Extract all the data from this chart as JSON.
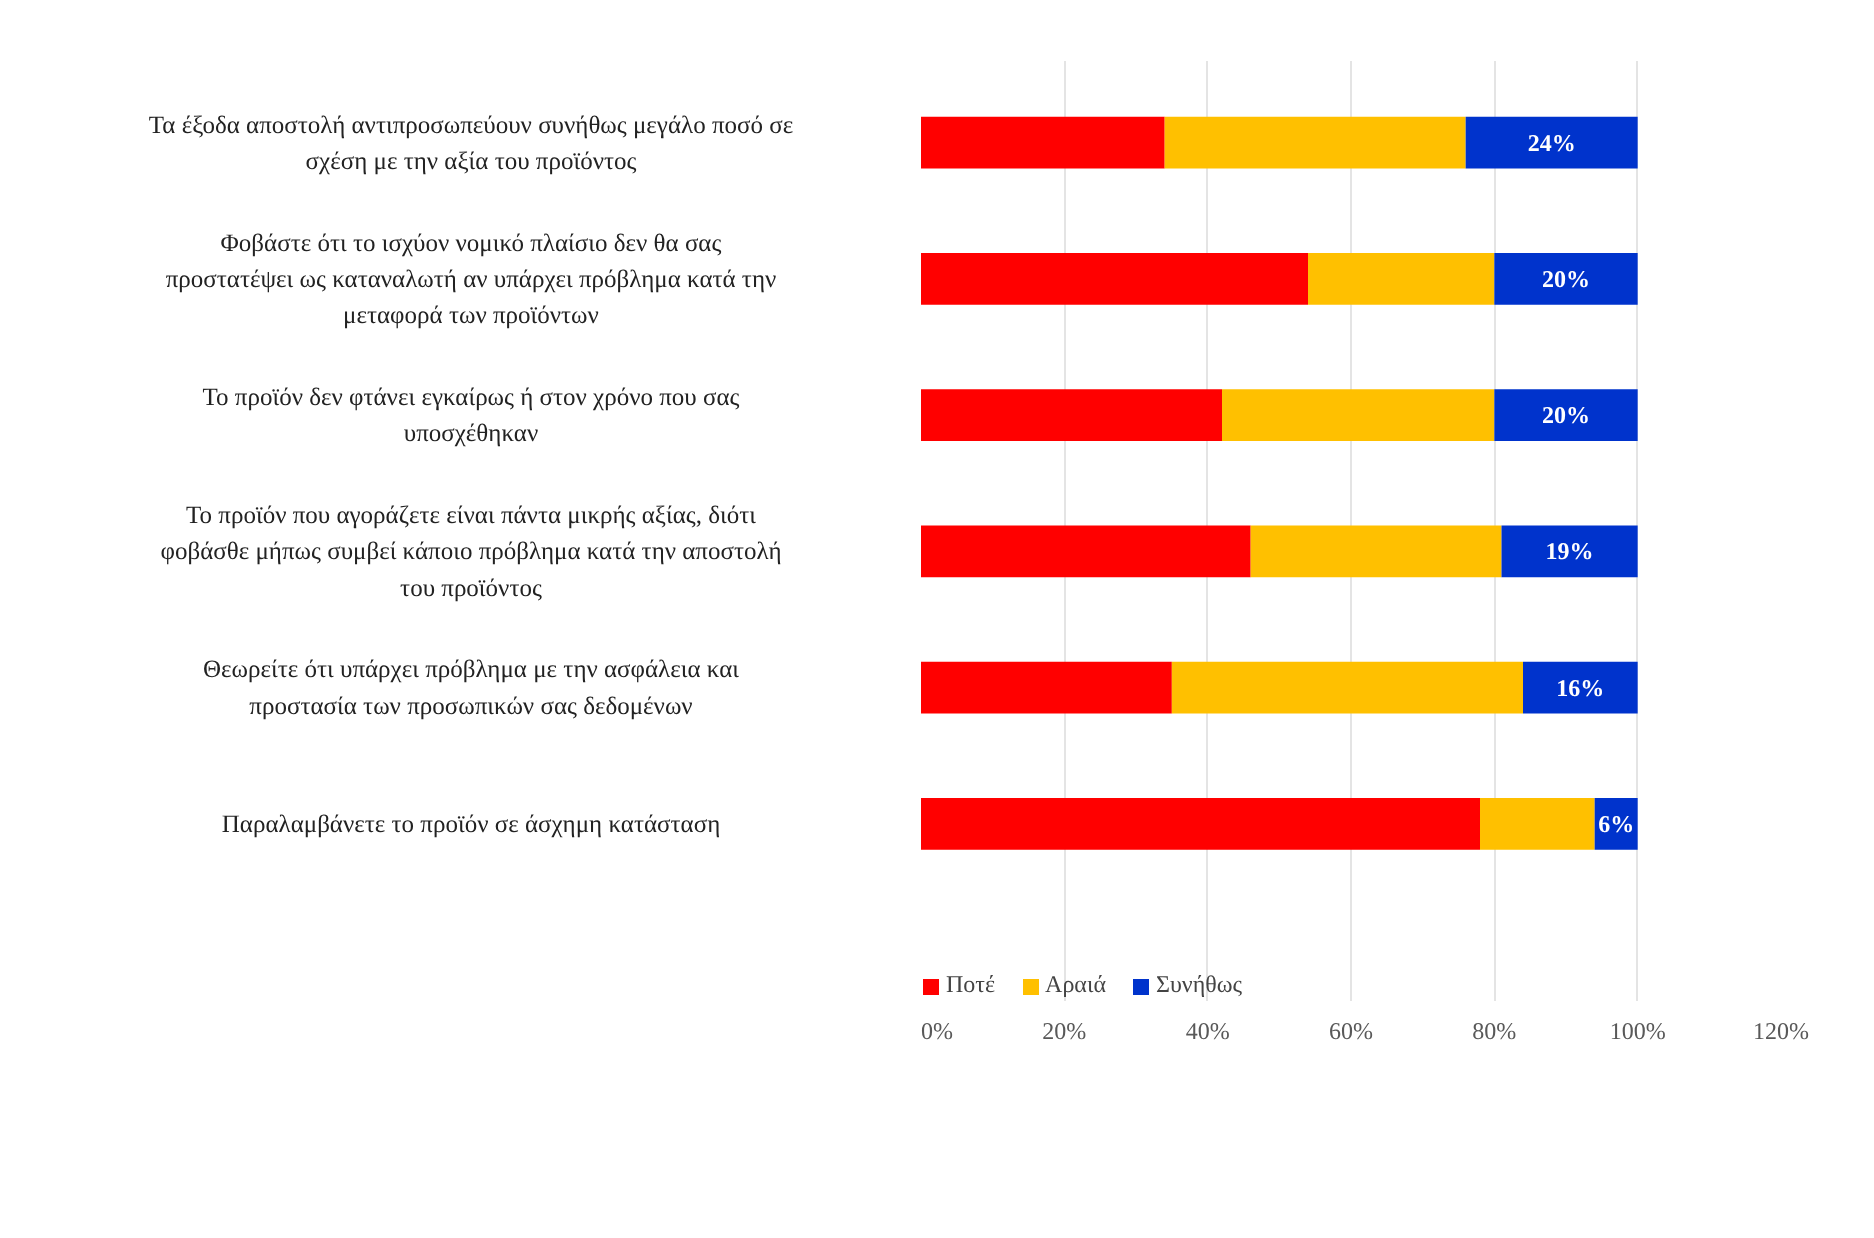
{
  "chart_data": {
    "type": "bar",
    "orientation": "horizontal",
    "stacked": true,
    "categories": [
      "Τα έξοδα αποστολή αντιπροσωπεύουν συνήθως μεγάλο ποσό σε σχέση με την αξία του προϊόντος",
      "Φοβάστε ότι το ισχύον νομικό πλαίσιο δεν θα σας προστατέψει ως καταναλωτή αν υπάρχει πρόβλημα κατά την μεταφορά των προϊόντων",
      "Το προϊόν δεν φτάνει εγκαίρως ή στον χρόνο που σας υποσχέθηκαν",
      "Το προϊόν που αγοράζετε είναι πάντα μικρής αξίας, διότι φοβάσθε μήπως συμβεί κάποιο πρόβλημα κατά την αποστολή του προϊόντος",
      "Θεωρείτε ότι υπάρχει πρόβλημα με την ασφάλεια και προστασία των προσωπικών σας δεδομένων",
      "Παραλαμβάνετε το προϊόν σε άσχημη κατάσταση"
    ],
    "series": [
      {
        "name": "Ποτέ",
        "color": "#ff0000",
        "values": [
          34,
          54,
          42,
          46,
          35,
          78
        ]
      },
      {
        "name": "Αραιά",
        "color": "#ffc000",
        "values": [
          42,
          26,
          38,
          35,
          49,
          16
        ]
      },
      {
        "name": "Συνήθως",
        "color": "#0033cc",
        "values": [
          24,
          20,
          20,
          19,
          16,
          6
        ],
        "value_labels": [
          "24%",
          "20%",
          "20%",
          "19%",
          "16%",
          "6%"
        ]
      }
    ],
    "xlim": [
      0,
      120
    ],
    "xticks": [
      {
        "value": 0,
        "label": "0%"
      },
      {
        "value": 20,
        "label": "20%"
      },
      {
        "value": 40,
        "label": "40%"
      },
      {
        "value": 60,
        "label": "60%"
      },
      {
        "value": 80,
        "label": "80%"
      },
      {
        "value": 100,
        "label": "100%"
      },
      {
        "value": 120,
        "label": "120%"
      }
    ],
    "grid": "x",
    "legend": "bottom"
  }
}
